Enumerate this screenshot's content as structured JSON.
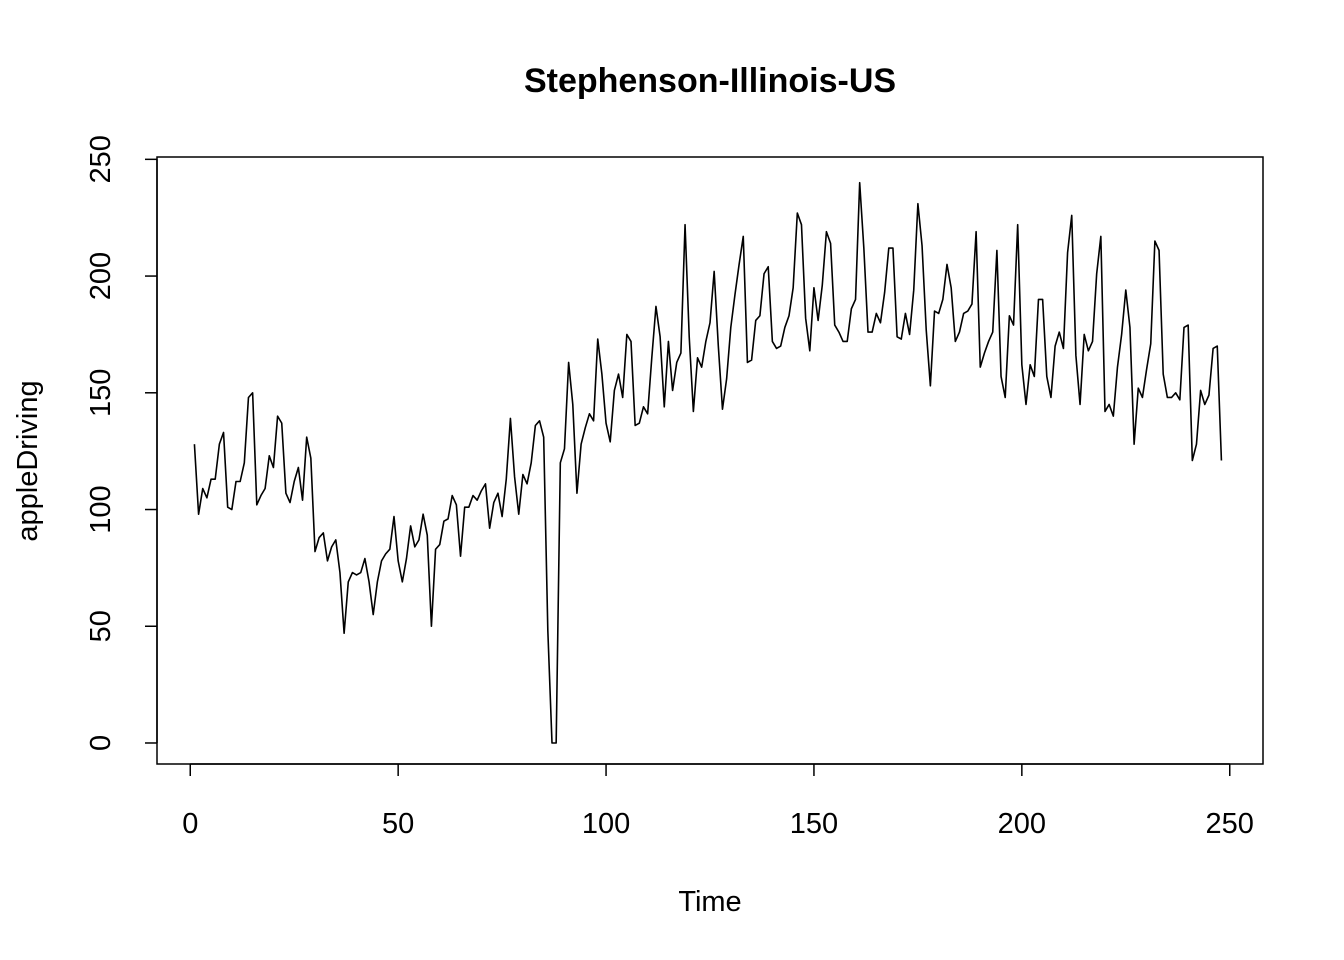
{
  "chart_data": {
    "type": "line",
    "title": "Stephenson-Illinois-US",
    "xlabel": "Time",
    "ylabel": "appleDriving",
    "xlim": [
      -8,
      258
    ],
    "ylim": [
      -9,
      251
    ],
    "xticks": [
      0,
      50,
      100,
      150,
      200,
      250
    ],
    "yticks": [
      0,
      50,
      100,
      150,
      200,
      250
    ],
    "xtick_labels": [
      "0",
      "50",
      "100",
      "150",
      "200",
      "250"
    ],
    "ytick_labels": [
      "0",
      "50",
      "100",
      "150",
      "200",
      "250"
    ],
    "grid": false,
    "legend": "none",
    "line_color": "#000000",
    "series": [
      {
        "x": [
          1,
          2,
          3,
          4,
          5,
          6,
          7,
          8,
          9,
          10,
          11,
          12,
          13,
          14,
          15,
          16,
          17,
          18,
          19,
          20,
          21,
          22,
          23,
          24,
          25,
          26,
          27,
          28,
          29,
          30,
          31,
          32,
          33,
          34,
          35,
          36,
          37,
          38,
          39,
          40,
          41,
          42,
          43,
          44,
          45,
          46,
          47,
          48,
          49,
          50,
          51,
          52,
          53,
          54,
          55,
          56,
          57,
          58,
          59,
          60,
          61,
          62,
          63,
          64,
          65,
          66,
          67,
          68,
          69,
          70,
          71,
          72,
          73,
          74,
          75,
          76,
          77,
          78,
          79,
          80,
          81,
          82,
          83,
          84,
          85,
          86,
          87,
          88,
          89,
          90,
          91,
          92,
          93,
          94,
          95,
          96,
          97,
          98,
          99,
          100,
          101,
          102,
          103,
          104,
          105,
          106,
          107,
          108,
          109,
          110,
          111,
          112,
          113,
          114,
          115,
          116,
          117,
          118,
          119,
          120,
          121,
          122,
          123,
          124,
          125,
          126,
          127,
          128,
          129,
          130,
          131,
          132,
          133,
          134,
          135,
          136,
          137,
          138,
          139,
          140,
          141,
          142,
          143,
          144,
          145,
          146,
          147,
          148,
          149,
          150,
          151,
          152,
          153,
          154,
          155,
          156,
          157,
          158,
          159,
          160,
          161,
          162,
          163,
          164,
          165,
          166,
          167,
          168,
          169,
          170,
          171,
          172,
          173,
          174,
          175,
          176,
          177,
          178,
          179,
          180,
          181,
          182,
          183,
          184,
          185,
          186,
          187,
          188,
          189,
          190,
          191,
          192,
          193,
          194,
          195,
          196,
          197,
          198,
          199,
          200,
          201,
          202,
          203,
          204,
          205,
          206,
          207,
          208,
          209,
          210,
          211,
          212,
          213,
          214,
          215,
          216,
          217,
          218,
          219,
          220,
          221,
          222,
          223,
          224,
          225,
          226,
          227,
          228,
          229,
          230,
          231,
          232,
          233,
          234,
          235,
          236,
          237,
          238,
          239,
          240,
          241,
          242,
          243,
          244,
          245,
          246,
          247,
          248
        ],
        "values": [
          128,
          98,
          109,
          105,
          113,
          113,
          128,
          133,
          101,
          100,
          112,
          112,
          120,
          148,
          150,
          102,
          106,
          109,
          123,
          118,
          140,
          137,
          107,
          103,
          112,
          118,
          104,
          131,
          122,
          82,
          88,
          90,
          78,
          84,
          87,
          73,
          47,
          69,
          73,
          72,
          73,
          79,
          69,
          55,
          69,
          78,
          81,
          83,
          97,
          78,
          69,
          79,
          93,
          84,
          87,
          98,
          89,
          50,
          83,
          85,
          95,
          96,
          106,
          102,
          80,
          101,
          101,
          106,
          104,
          108,
          111,
          92,
          103,
          107,
          97,
          113,
          139,
          114,
          98,
          115,
          111,
          120,
          136,
          138,
          131,
          48,
          0,
          0,
          120,
          126,
          163,
          145,
          107,
          128,
          135,
          141,
          138,
          173,
          158,
          137,
          129,
          151,
          158,
          148,
          175,
          172,
          136,
          137,
          144,
          141,
          165,
          187,
          174,
          144,
          172,
          151,
          163,
          167,
          222,
          174,
          142,
          165,
          161,
          172,
          180,
          202,
          170,
          143,
          156,
          178,
          192,
          205,
          217,
          163,
          164,
          181,
          183,
          201,
          204,
          172,
          169,
          170,
          178,
          183,
          195,
          227,
          222,
          182,
          168,
          195,
          181,
          196,
          219,
          214,
          179,
          176,
          172,
          172,
          186,
          190,
          240,
          212,
          176,
          176,
          184,
          180,
          193,
          212,
          212,
          174,
          173,
          184,
          175,
          194,
          231,
          213,
          177,
          153,
          185,
          184,
          190,
          205,
          195,
          172,
          176,
          184,
          185,
          188,
          219,
          161,
          167,
          172,
          176,
          211,
          157,
          148,
          183,
          179,
          222,
          162,
          145,
          162,
          157,
          190,
          190,
          157,
          148,
          170,
          176,
          169,
          210,
          226,
          166,
          145,
          175,
          168,
          172,
          201,
          217,
          142,
          145,
          140,
          161,
          175,
          194,
          178,
          128,
          152,
          148,
          160,
          171,
          215,
          211,
          158,
          148,
          148,
          150,
          147,
          178,
          179,
          121,
          128,
          151,
          145,
          149,
          169,
          170,
          121
        ]
      }
    ]
  }
}
